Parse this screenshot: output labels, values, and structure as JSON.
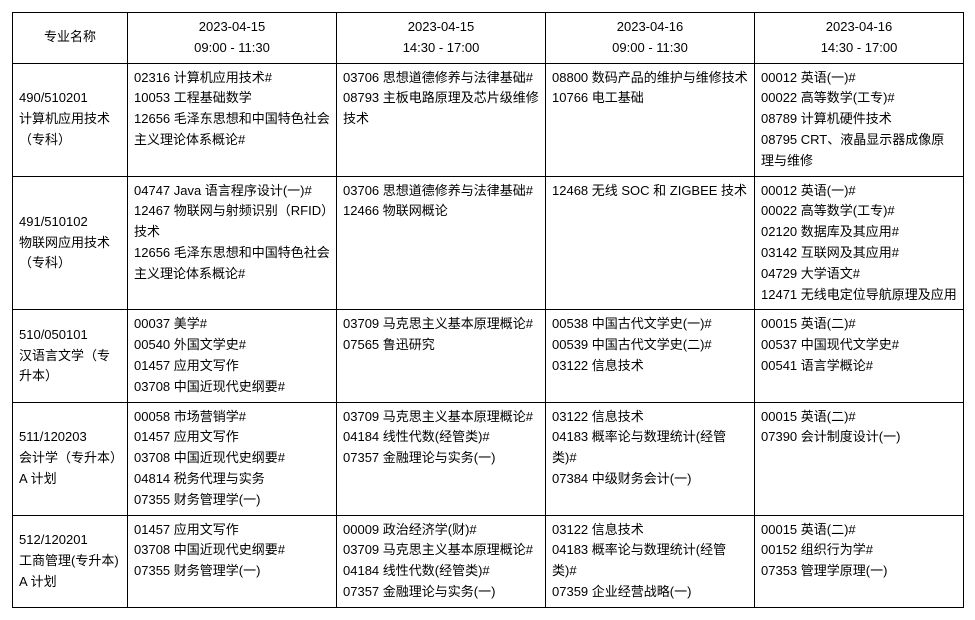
{
  "table": {
    "header": {
      "major_label": "专业名称",
      "slots": [
        {
          "date": "2023-04-15",
          "time": "09:00 - 11:30"
        },
        {
          "date": "2023-04-15",
          "time": "14:30 - 17:00"
        },
        {
          "date": "2023-04-16",
          "time": "09:00 - 11:30"
        },
        {
          "date": "2023-04-16",
          "time": "14:30 - 17:00"
        }
      ]
    },
    "rows": [
      {
        "major": "490/510201\n计算机应用技术（专科）",
        "cells": [
          "02316 计算机应用技术#\n10053 工程基础数学\n12656 毛泽东思想和中国特色社会主义理论体系概论#",
          "03706 思想道德修养与法律基础#\n08793 主板电路原理及芯片级维修技术",
          "08800 数码产品的维护与维修技术\n10766 电工基础",
          "00012 英语(一)#\n00022 高等数学(工专)#\n08789 计算机硬件技术\n08795 CRT、液晶显示器成像原理与维修"
        ]
      },
      {
        "major": "491/510102\n物联网应用技术（专科）",
        "cells": [
          "04747 Java 语言程序设计(一)#\n12467 物联网与射频识别（RFID）技术\n12656 毛泽东思想和中国特色社会主义理论体系概论#",
          "03706 思想道德修养与法律基础#\n12466 物联网概论",
          "12468 无线 SOC 和 ZIGBEE 技术",
          "00012 英语(一)#\n00022 高等数学(工专)#\n02120 数据库及其应用#\n03142 互联网及其应用#\n04729 大学语文#\n12471 无线电定位导航原理及应用"
        ]
      },
      {
        "major": "510/050101\n汉语言文学（专升本）",
        "cells": [
          "00037 美学#\n00540 外国文学史#\n01457 应用文写作\n03708 中国近现代史纲要#",
          "03709 马克思主义基本原理概论#\n07565 鲁迅研究",
          "00538 中国古代文学史(一)#\n00539 中国古代文学史(二)#\n03122 信息技术",
          "00015 英语(二)#\n00537 中国现代文学史#\n00541 语言学概论#"
        ]
      },
      {
        "major": "511/120203\n会计学（专升本）A 计划",
        "cells": [
          "00058 市场营销学#\n01457 应用文写作\n03708 中国近现代史纲要#\n04814 税务代理与实务\n07355 财务管理学(一)",
          "03709 马克思主义基本原理概论#\n04184 线性代数(经管类)#\n07357 金融理论与实务(一)",
          "03122 信息技术\n04183 概率论与数理统计(经管类)#\n07384 中级财务会计(一)",
          "00015 英语(二)#\n07390 会计制度设计(一)"
        ]
      },
      {
        "major": "512/120201\n工商管理(专升本) A 计划",
        "cells": [
          "01457 应用文写作\n03708 中国近现代史纲要#\n07355 财务管理学(一)",
          "00009 政治经济学(财)#\n03709 马克思主义基本原理概论#\n04184 线性代数(经管类)#\n07357 金融理论与实务(一)",
          "03122 信息技术\n04183 概率论与数理统计(经管类)#\n07359 企业经营战略(一)",
          "00015 英语(二)#\n00152 组织行为学#\n07353 管理学原理(一)"
        ]
      }
    ]
  }
}
